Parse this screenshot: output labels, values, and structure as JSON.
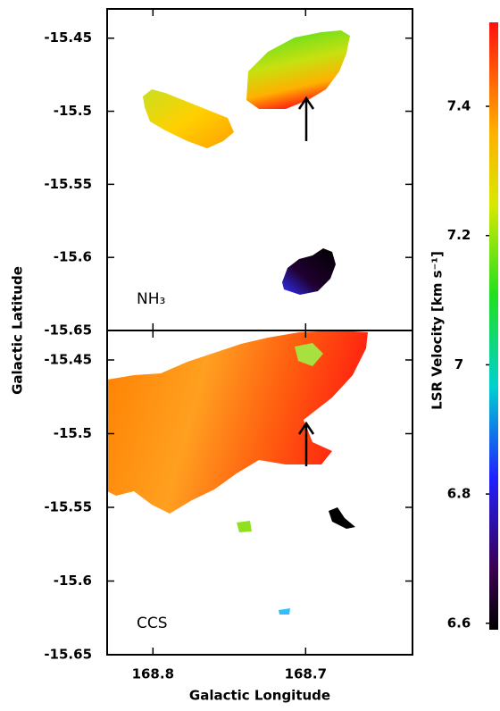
{
  "chart_data": [
    {
      "type": "map",
      "label": "NH₃",
      "xlim": [
        168.83,
        168.63
      ],
      "ylim": [
        -15.65,
        -15.43
      ],
      "yticks": [
        -15.45,
        -15.5,
        -15.55,
        -15.6,
        -15.65
      ],
      "xticks": [
        168.8,
        168.7
      ]
    },
    {
      "type": "map",
      "label": "CCS",
      "xlim": [
        168.83,
        168.63
      ],
      "ylim": [
        -15.65,
        -15.43
      ],
      "yticks": [
        -15.45,
        -15.5,
        -15.55,
        -15.6,
        -15.65
      ],
      "xticks": [
        168.8,
        168.7
      ],
      "xlabel": "Galactic Longitude"
    }
  ],
  "ylabel": "Galactic Latitude",
  "colorbar": {
    "label": "LSR Velocity [km s⁻¹]",
    "lim": [
      6.59,
      7.53
    ],
    "ticks": [
      6.6,
      6.8,
      7.0,
      7.2,
      7.4
    ]
  }
}
